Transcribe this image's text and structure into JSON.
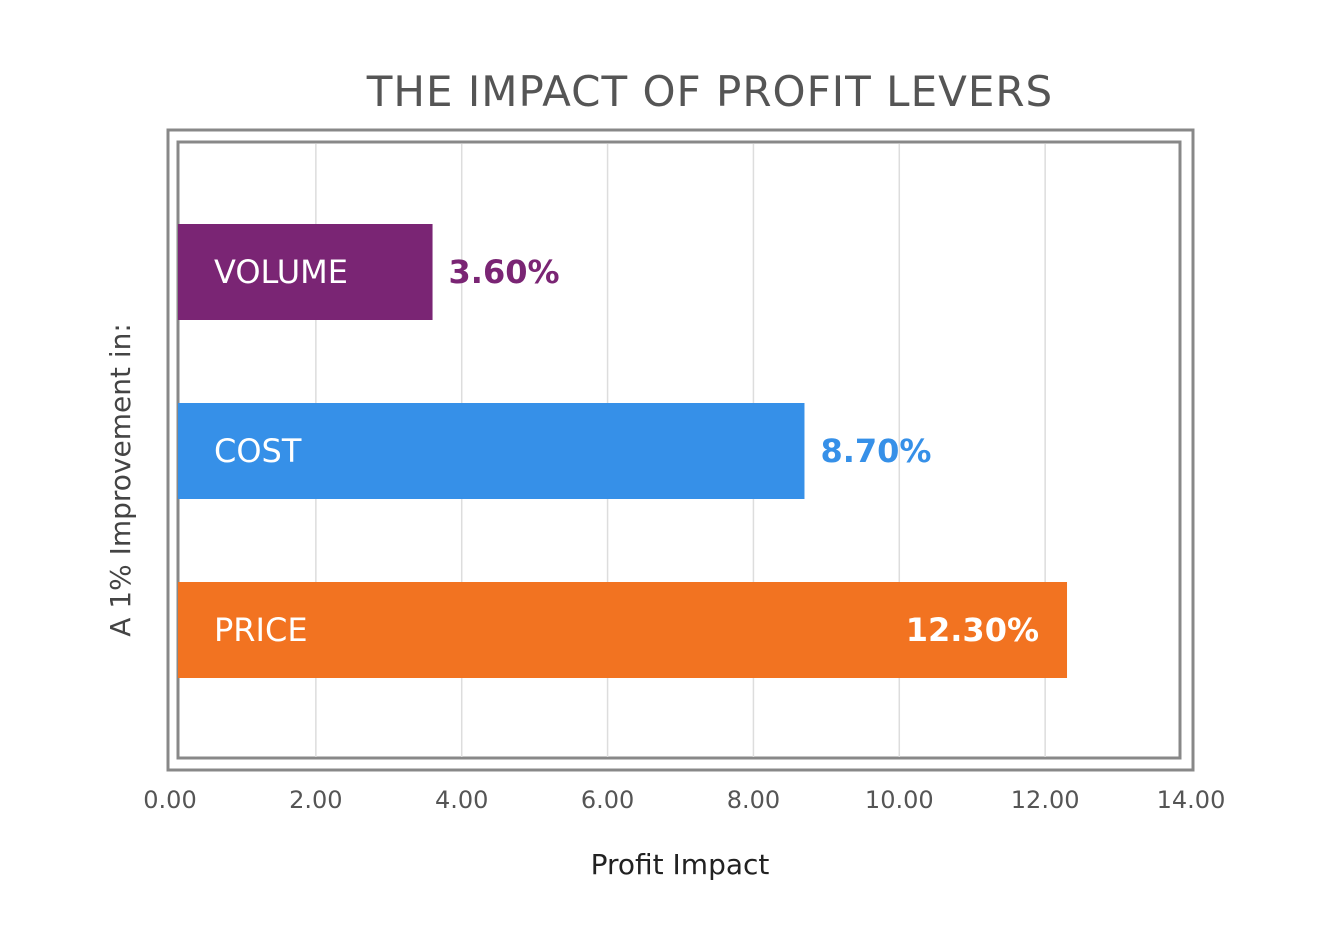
{
  "chart_data": {
    "type": "bar",
    "orientation": "horizontal",
    "title": "THE IMPACT OF PROFIT LEVERS",
    "xlabel": "Profit Impact",
    "ylabel": "A 1% Improvement in:",
    "xlim": [
      0,
      14
    ],
    "grid": true,
    "x_ticks": [
      0,
      2,
      4,
      6,
      8,
      10,
      12,
      14
    ],
    "x_tick_labels": [
      "0.00",
      "2.00",
      "4.00",
      "6.00",
      "8.00",
      "10.00",
      "12.00",
      "14.00"
    ],
    "categories": [
      "VOLUME",
      "COST",
      "PRICE"
    ],
    "values": [
      3.6,
      8.7,
      12.3
    ],
    "value_labels": [
      "3.60%",
      "8.70%",
      "12.30%"
    ],
    "colors": [
      "#7a2574",
      "#3690e8",
      "#f27321"
    ],
    "value_label_colors": [
      "#7a2574",
      "#3690e8",
      "#ffffff"
    ],
    "value_label_positions": [
      "outside",
      "outside",
      "inside"
    ]
  }
}
